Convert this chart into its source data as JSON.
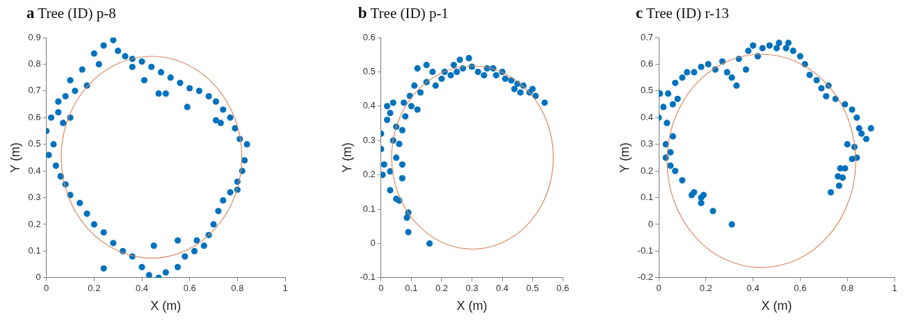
{
  "chart_data": [
    {
      "type": "scatter",
      "title": "a Tree (ID) p-8",
      "xlabel": "X (m)",
      "ylabel": "Y (m)",
      "xlim": [
        0,
        1
      ],
      "xticks": [
        0,
        0.2,
        0.4,
        0.6,
        0.8,
        1
      ],
      "ylim": [
        0,
        0.9
      ],
      "yticks": [
        0,
        0.1,
        0.2,
        0.3,
        0.4,
        0.5,
        0.6,
        0.7,
        0.8,
        0.9
      ],
      "grid": false,
      "legend": false,
      "marker": "circle",
      "series": [
        {
          "type": "scatter",
          "color": "#0072bd",
          "x": [
            0.0,
            0.01,
            0.02,
            0.03,
            0.04,
            0.05,
            0.06,
            0.05,
            0.08,
            0.1,
            0.12,
            0.1,
            0.15,
            0.17,
            0.2,
            0.22,
            0.24,
            0.28,
            0.3,
            0.33,
            0.36,
            0.4,
            0.44,
            0.48,
            0.52,
            0.56,
            0.6,
            0.64,
            0.68,
            0.71,
            0.74,
            0.77,
            0.79,
            0.81,
            0.84,
            0.83,
            0.82,
            0.8,
            0.77,
            0.74,
            0.72,
            0.7,
            0.68,
            0.66,
            0.62,
            0.58,
            0.55,
            0.5,
            0.47,
            0.43,
            0.4,
            0.36,
            0.32,
            0.28,
            0.24,
            0.2,
            0.17,
            0.14,
            0.1,
            0.08,
            0.06,
            0.24,
            0.41,
            0.47,
            0.5,
            0.59,
            0.71,
            0.73,
            0.55,
            0.63,
            0.45,
            0.07,
            0.36,
            0.8
          ],
          "values": [
            0.55,
            0.46,
            0.6,
            0.5,
            0.42,
            0.62,
            0.38,
            0.66,
            0.68,
            0.74,
            0.7,
            0.6,
            0.78,
            0.72,
            0.84,
            0.8,
            0.87,
            0.89,
            0.85,
            0.83,
            0.82,
            0.81,
            0.79,
            0.77,
            0.75,
            0.73,
            0.71,
            0.7,
            0.68,
            0.66,
            0.63,
            0.6,
            0.56,
            0.52,
            0.5,
            0.44,
            0.4,
            0.36,
            0.32,
            0.29,
            0.25,
            0.2,
            0.16,
            0.12,
            0.1,
            0.08,
            0.04,
            0.02,
            0.0,
            0.01,
            0.04,
            0.08,
            0.1,
            0.13,
            0.17,
            0.2,
            0.24,
            0.28,
            0.31,
            0.35,
            0.38,
            0.035,
            0.74,
            0.69,
            0.69,
            0.64,
            0.59,
            0.58,
            0.14,
            0.14,
            0.12,
            0.58,
            0.79,
            0.33
          ]
        }
      ]
    },
    {
      "type": "scatter",
      "title": "b Tree (ID) p-1",
      "xlabel": "X (m)",
      "ylabel": "Y (m)",
      "xlim": [
        0,
        0.6
      ],
      "xticks": [
        0,
        0.1,
        0.2,
        0.3,
        0.4,
        0.5,
        0.6
      ],
      "ylim": [
        -0.1,
        0.6
      ],
      "yticks": [
        -0.1,
        0,
        0.1,
        0.2,
        0.3,
        0.4,
        0.5,
        0.6
      ],
      "grid": false,
      "legend": false,
      "marker": "circle",
      "series": [
        {
          "type": "scatter",
          "color": "#0072bd",
          "x": [
            0.0,
            0.005,
            0.01,
            0.0,
            0.02,
            0.02,
            0.03,
            0.04,
            0.03,
            0.03,
            0.04,
            0.05,
            0.05,
            0.05,
            0.06,
            0.06,
            0.07,
            0.07,
            0.07,
            0.08,
            0.075,
            0.085,
            0.09,
            0.09,
            0.095,
            0.1,
            0.11,
            0.12,
            0.12,
            0.13,
            0.15,
            0.15,
            0.16,
            0.17,
            0.18,
            0.2,
            0.21,
            0.23,
            0.24,
            0.25,
            0.26,
            0.27,
            0.29,
            0.3,
            0.32,
            0.34,
            0.35,
            0.37,
            0.38,
            0.4,
            0.41,
            0.43,
            0.44,
            0.45,
            0.46,
            0.47,
            0.49,
            0.5,
            0.51,
            0.54
          ],
          "values": [
            0.275,
            0.2,
            0.23,
            0.32,
            0.36,
            0.4,
            0.38,
            0.41,
            0.155,
            0.21,
            0.3,
            0.34,
            0.25,
            0.13,
            0.125,
            0.29,
            0.23,
            0.19,
            0.33,
            0.37,
            0.41,
            0.075,
            0.09,
            0.033,
            0.43,
            0.4,
            0.46,
            0.51,
            0.39,
            0.44,
            0.52,
            0.47,
            0.0,
            0.5,
            0.46,
            0.48,
            0.5,
            0.49,
            0.52,
            0.5,
            0.535,
            0.51,
            0.54,
            0.515,
            0.5,
            0.49,
            0.51,
            0.51,
            0.49,
            0.5,
            0.48,
            0.475,
            0.45,
            0.465,
            0.44,
            0.46,
            0.44,
            0.45,
            0.43,
            0.41
          ]
        }
      ]
    },
    {
      "type": "scatter",
      "title": "c Tree (ID) r-13",
      "xlabel": "X (m)",
      "ylabel": "Y (m)",
      "xlim": [
        0,
        1
      ],
      "xticks": [
        0,
        0.2,
        0.4,
        0.6,
        0.8,
        1
      ],
      "ylim": [
        -0.2,
        0.7
      ],
      "yticks": [
        -0.2,
        -0.1,
        0,
        0.1,
        0.2,
        0.3,
        0.4,
        0.5,
        0.6,
        0.7
      ],
      "grid": false,
      "legend": false,
      "marker": "circle",
      "series": [
        {
          "type": "scatter",
          "color": "#0072bd",
          "x": [
            0.0,
            0.005,
            0.02,
            0.03,
            0.03,
            0.035,
            0.04,
            0.05,
            0.05,
            0.06,
            0.06,
            0.07,
            0.07,
            0.08,
            0.1,
            0.1,
            0.12,
            0.14,
            0.15,
            0.15,
            0.18,
            0.18,
            0.19,
            0.18,
            0.21,
            0.23,
            0.24,
            0.27,
            0.29,
            0.31,
            0.31,
            0.33,
            0.34,
            0.37,
            0.38,
            0.4,
            0.42,
            0.44,
            0.47,
            0.5,
            0.51,
            0.54,
            0.55,
            0.57,
            0.6,
            0.62,
            0.64,
            0.67,
            0.69,
            0.71,
            0.72,
            0.73,
            0.75,
            0.76,
            0.765,
            0.77,
            0.78,
            0.79,
            0.79,
            0.8,
            0.82,
            0.82,
            0.83,
            0.84,
            0.84,
            0.85,
            0.86,
            0.88,
            0.9
          ],
          "values": [
            0.4,
            0.49,
            0.44,
            0.3,
            0.25,
            0.38,
            0.49,
            0.27,
            0.22,
            0.33,
            0.45,
            0.53,
            0.2,
            0.47,
            0.165,
            0.55,
            0.57,
            0.11,
            0.12,
            0.57,
            0.08,
            0.1,
            0.11,
            0.59,
            0.6,
            0.05,
            0.58,
            0.61,
            0.57,
            0.0,
            0.55,
            0.52,
            0.62,
            0.58,
            0.65,
            0.67,
            0.63,
            0.66,
            0.67,
            0.66,
            0.68,
            0.66,
            0.68,
            0.65,
            0.63,
            0.6,
            0.56,
            0.54,
            0.51,
            0.48,
            0.52,
            0.12,
            0.47,
            0.18,
            0.145,
            0.21,
            0.175,
            0.21,
            0.45,
            0.3,
            0.245,
            0.43,
            0.29,
            0.25,
            0.4,
            0.36,
            0.34,
            0.32,
            0.36
          ]
        }
      ]
    }
  ]
}
